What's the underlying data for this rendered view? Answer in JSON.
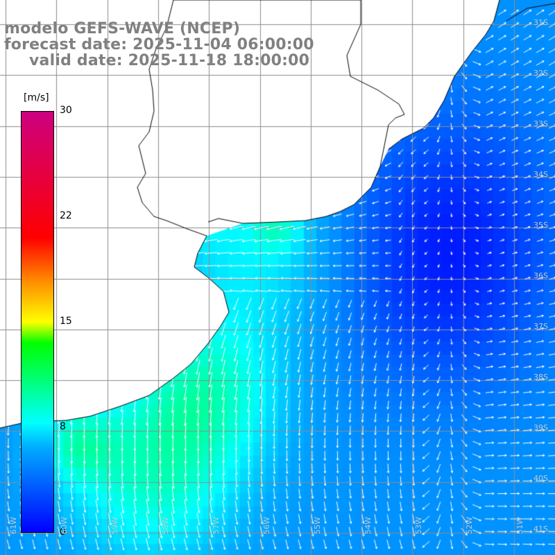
{
  "header": {
    "line1": "modelo GEFS-WAVE (NCEP)",
    "line2": "forecast date: 2025-11-04 06:00:00",
    "line3": "valid date: 2025-11-18 18:00:00"
  },
  "colorbar": {
    "unit": "[m/s]",
    "ticks": [
      "30",
      "22",
      "15",
      "8",
      "0"
    ],
    "range": [
      0,
      30
    ],
    "colors": [
      "#0000ff",
      "#00aaff",
      "#00ffff",
      "#00ff00",
      "#ffff00",
      "#ff8800",
      "#ff0000",
      "#cc0080"
    ]
  },
  "axes": {
    "lat_labels": [
      "31S",
      "32S",
      "33S",
      "34S",
      "35S",
      "36S",
      "37S",
      "38S",
      "39S",
      "40S",
      "41S"
    ],
    "lon_labels": [
      "61W",
      "60W",
      "59W",
      "58W",
      "57W",
      "56W",
      "55W",
      "54W",
      "53W",
      "52W",
      "51W"
    ]
  },
  "colors": {
    "land": "#ffffff",
    "grid": "#8c8c8c",
    "coast": "#000000",
    "title": "#808080",
    "arrows": "#ffffff"
  }
}
